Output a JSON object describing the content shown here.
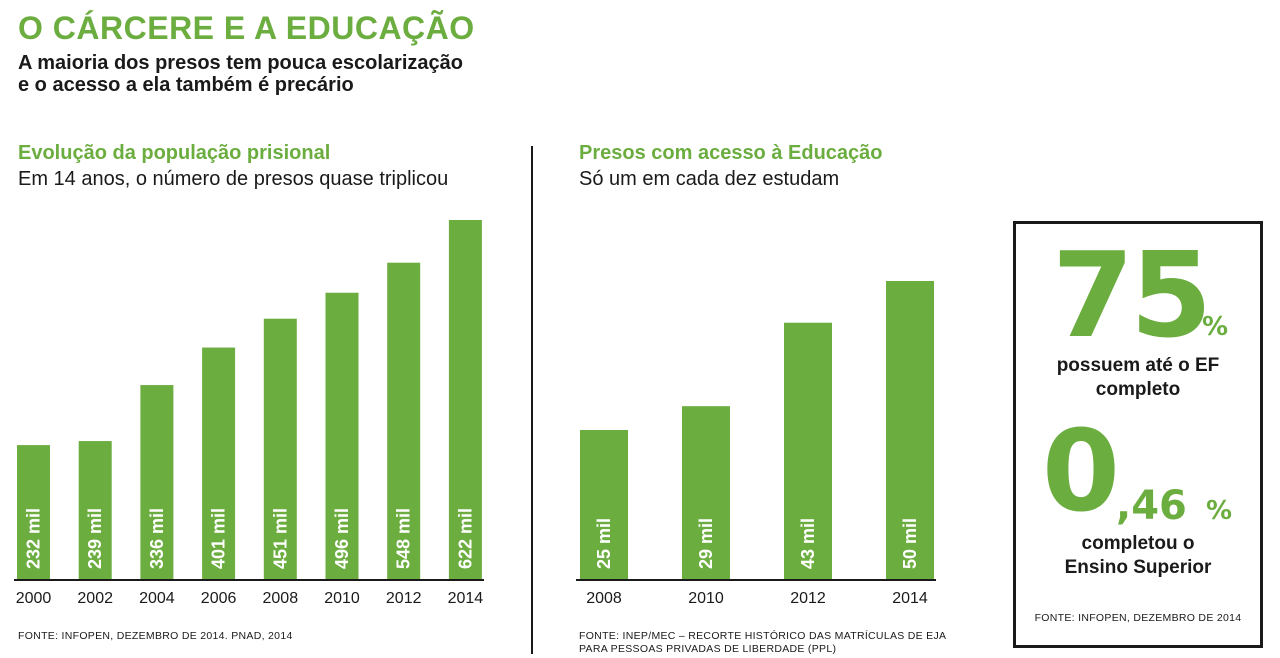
{
  "header": {
    "title": "O CÁRCERE E A EDUCAÇÃO",
    "subtitle_line1": "A maioria dos presos tem pouca escolarização",
    "subtitle_line2": "e o acesso a ela também é precário"
  },
  "left_section": {
    "title": "Evolução da população prisional",
    "subtitle": "Em 14 anos, o número de presos quase triplicou",
    "source": "FONTE: INFOPEN, DEZEMBRO DE 2014. PNAD, 2014"
  },
  "right_section": {
    "title": "Presos com acesso à Educação",
    "subtitle": "Só um em cada dez estudam",
    "source_line1": "FONTE: INEP/MEC – RECORTE HISTÓRICO DAS MATRÍCULAS DE EJA",
    "source_line2": "PARA PESSOAS PRIVADAS DE LIBERDADE (PPL)"
  },
  "stat_box": {
    "stat1_number": "75",
    "stat1_unit": "%",
    "stat1_line1": "possuem até o EF",
    "stat1_line2": "completo",
    "stat2_number": "0",
    "stat2_decimal": ",46",
    "stat2_unit": "%",
    "stat2_line1": "completou o",
    "stat2_line2": "Ensino Superior",
    "source": "FONTE: INFOPEN, DEZEMBRO DE 2014"
  },
  "colors": {
    "accent": "#6bad3f",
    "text": "#1a1a1a",
    "bar_label": "#ffffff"
  },
  "chart_data": [
    {
      "type": "bar",
      "categories": [
        "2000",
        "2002",
        "2004",
        "2006",
        "2008",
        "2010",
        "2012",
        "2014"
      ],
      "values": [
        232,
        239,
        336,
        401,
        451,
        496,
        548,
        622
      ],
      "labels": [
        "232 mil",
        "239 mil",
        "336 mil",
        "401 mil",
        "451 mil",
        "496 mil",
        "548 mil",
        "622 mil"
      ],
      "ylim": [
        0,
        622
      ],
      "grid": false,
      "title": "Evolução da população prisional",
      "subtitle": "Em 14 anos, o número de presos quase triplicou",
      "xlabel": "",
      "ylabel": ""
    },
    {
      "type": "bar",
      "categories": [
        "2008",
        "2010",
        "2012",
        "2014"
      ],
      "values": [
        25,
        29,
        43,
        50
      ],
      "labels": [
        "25 mil",
        "29 mil",
        "43 mil",
        "50 mil"
      ],
      "ylim": [
        0,
        50
      ],
      "grid": false,
      "title": "Presos com acesso à Educação",
      "subtitle": "Só um em cada dez estudam",
      "xlabel": "",
      "ylabel": ""
    }
  ]
}
